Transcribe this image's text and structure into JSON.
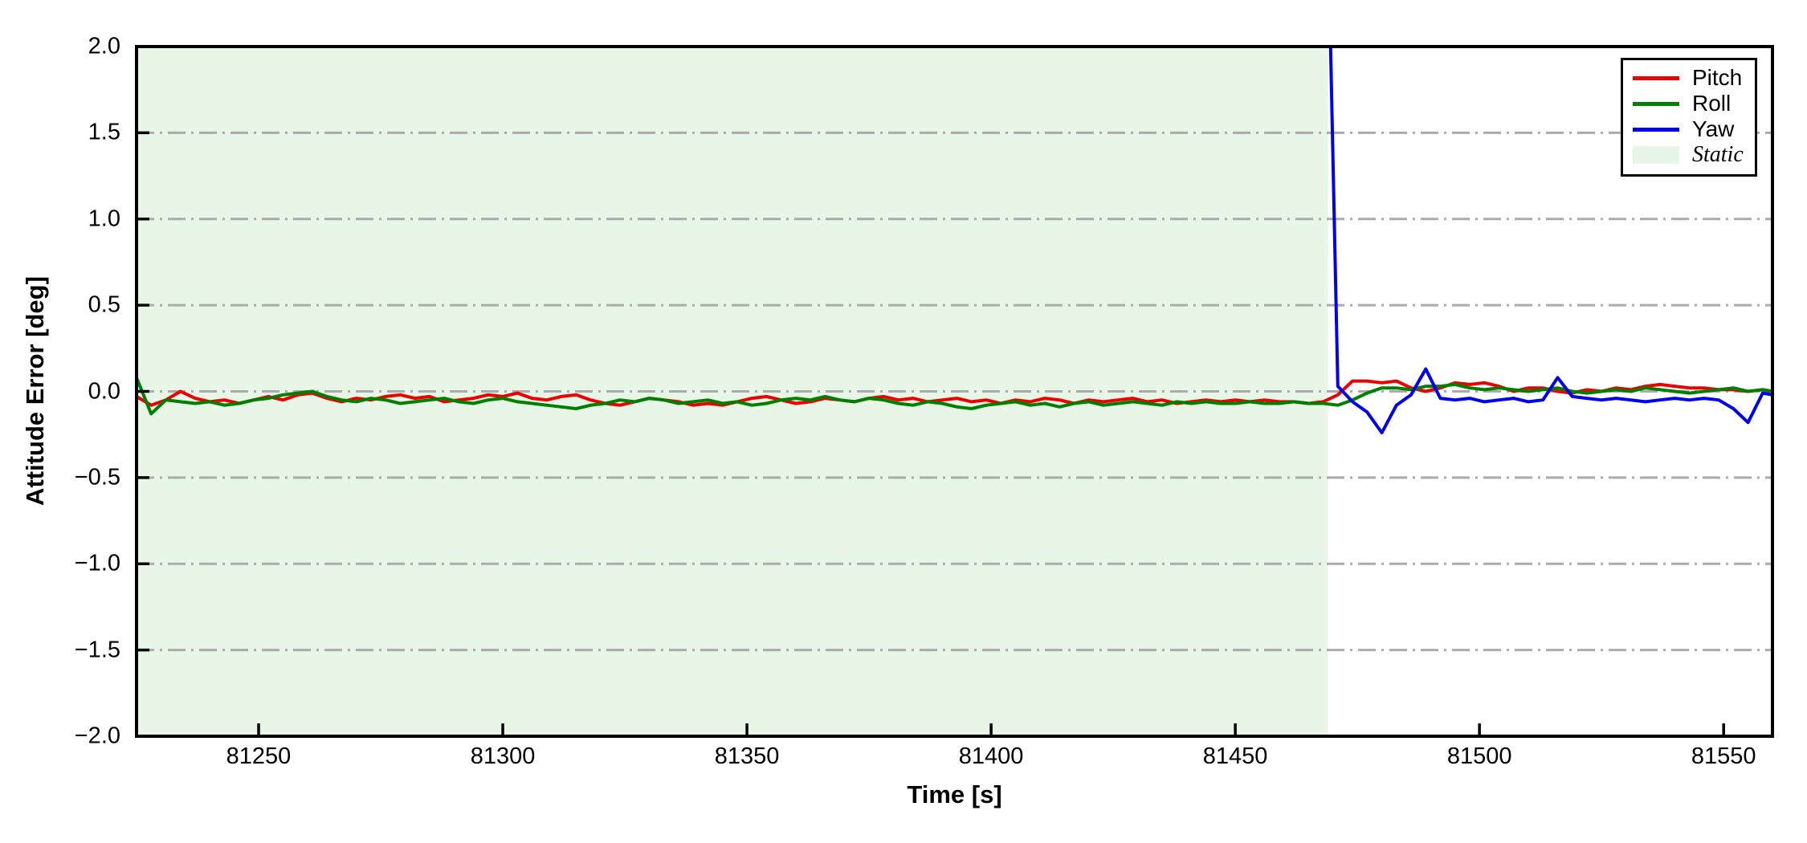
{
  "chart_data": {
    "type": "line",
    "title": "",
    "xlabel": "Time [s]",
    "ylabel": "Attitude Error [deg]",
    "xlim": [
      81225,
      81560
    ],
    "ylim": [
      -2.0,
      2.0
    ],
    "grid": "horizontal, dash-dot, gray",
    "legend_position": "upper right",
    "axis_color": "#000000",
    "grid_color": "#ababab",
    "background_color": "#ffffff",
    "x_ticks": [
      {
        "value": 81250,
        "label": "81250"
      },
      {
        "value": 81300,
        "label": "81300"
      },
      {
        "value": 81350,
        "label": "81350"
      },
      {
        "value": 81400,
        "label": "81400"
      },
      {
        "value": 81450,
        "label": "81450"
      },
      {
        "value": 81500,
        "label": "81500"
      },
      {
        "value": 81550,
        "label": "81550"
      }
    ],
    "y_ticks": [
      {
        "value": 2.0,
        "label": "2.0"
      },
      {
        "value": 1.5,
        "label": "1.5"
      },
      {
        "value": 1.0,
        "label": "1.0"
      },
      {
        "value": 0.5,
        "label": "0.5"
      },
      {
        "value": 0.0,
        "label": "0.0"
      },
      {
        "value": -0.5,
        "label": "−0.5"
      },
      {
        "value": -1.0,
        "label": "−1.0"
      },
      {
        "value": -1.5,
        "label": "−1.5"
      },
      {
        "value": -2.0,
        "label": "−2.0"
      }
    ],
    "static_region": {
      "label": "Static",
      "x_start": 81225,
      "x_end": 81469,
      "color": "#e7f6e7"
    },
    "legend": {
      "entries": [
        {
          "label": "Pitch",
          "type": "line",
          "color": "#ee0000",
          "italic": false
        },
        {
          "label": "Roll",
          "type": "line",
          "color": "#008000",
          "italic": false
        },
        {
          "label": "Yaw",
          "type": "line",
          "color": "#0000ee",
          "italic": false
        },
        {
          "label": "Static",
          "type": "patch",
          "color": "#e7f6e7",
          "italic": true
        }
      ]
    },
    "x": [
      81225,
      81228,
      81231,
      81234,
      81237,
      81240,
      81243,
      81246,
      81249,
      81252,
      81255,
      81258,
      81261,
      81264,
      81267,
      81270,
      81273,
      81276,
      81279,
      81282,
      81285,
      81288,
      81291,
      81294,
      81297,
      81300,
      81303,
      81306,
      81309,
      81312,
      81315,
      81318,
      81321,
      81324,
      81327,
      81330,
      81333,
      81336,
      81339,
      81342,
      81345,
      81348,
      81351,
      81354,
      81357,
      81360,
      81363,
      81366,
      81369,
      81372,
      81375,
      81378,
      81381,
      81384,
      81387,
      81390,
      81393,
      81396,
      81399,
      81402,
      81405,
      81408,
      81411,
      81414,
      81417,
      81420,
      81423,
      81426,
      81429,
      81432,
      81435,
      81438,
      81441,
      81444,
      81447,
      81450,
      81453,
      81456,
      81459,
      81462,
      81465,
      81468,
      81471,
      81474,
      81477,
      81480,
      81483,
      81486,
      81489,
      81492,
      81495,
      81498,
      81501,
      81504,
      81507,
      81510,
      81513,
      81516,
      81519,
      81522,
      81525,
      81528,
      81531,
      81534,
      81537,
      81540,
      81543,
      81546,
      81549,
      81552,
      81555,
      81558,
      81560
    ],
    "series": [
      {
        "name": "Pitch",
        "color": "#ee0000",
        "values": [
          -0.03,
          -0.08,
          -0.05,
          0.0,
          -0.04,
          -0.06,
          -0.05,
          -0.07,
          -0.05,
          -0.03,
          -0.05,
          -0.02,
          -0.01,
          -0.04,
          -0.06,
          -0.04,
          -0.05,
          -0.03,
          -0.02,
          -0.04,
          -0.03,
          -0.06,
          -0.05,
          -0.04,
          -0.02,
          -0.03,
          -0.01,
          -0.04,
          -0.05,
          -0.03,
          -0.02,
          -0.05,
          -0.07,
          -0.08,
          -0.06,
          -0.04,
          -0.05,
          -0.06,
          -0.08,
          -0.07,
          -0.08,
          -0.06,
          -0.04,
          -0.03,
          -0.05,
          -0.07,
          -0.06,
          -0.04,
          -0.05,
          -0.06,
          -0.04,
          -0.03,
          -0.05,
          -0.04,
          -0.06,
          -0.05,
          -0.04,
          -0.06,
          -0.05,
          -0.07,
          -0.05,
          -0.06,
          -0.04,
          -0.05,
          -0.07,
          -0.05,
          -0.06,
          -0.05,
          -0.04,
          -0.06,
          -0.05,
          -0.07,
          -0.06,
          -0.05,
          -0.06,
          -0.05,
          -0.06,
          -0.05,
          -0.06,
          -0.06,
          -0.07,
          -0.06,
          -0.02,
          0.06,
          0.06,
          0.05,
          0.06,
          0.02,
          0.0,
          0.02,
          0.05,
          0.04,
          0.05,
          0.03,
          0.0,
          0.02,
          0.02,
          0.0,
          -0.01,
          0.01,
          0.0,
          0.02,
          0.01,
          0.03,
          0.04,
          0.03,
          0.02,
          0.02,
          0.01,
          0.01,
          0.0,
          0.01,
          0.0
        ]
      },
      {
        "name": "Roll",
        "color": "#008000",
        "values": [
          0.08,
          -0.13,
          -0.05,
          -0.06,
          -0.07,
          -0.06,
          -0.08,
          -0.07,
          -0.05,
          -0.04,
          -0.02,
          -0.01,
          0.0,
          -0.03,
          -0.05,
          -0.06,
          -0.04,
          -0.05,
          -0.07,
          -0.06,
          -0.05,
          -0.04,
          -0.06,
          -0.07,
          -0.05,
          -0.04,
          -0.06,
          -0.07,
          -0.08,
          -0.09,
          -0.1,
          -0.08,
          -0.07,
          -0.05,
          -0.06,
          -0.04,
          -0.05,
          -0.07,
          -0.06,
          -0.05,
          -0.07,
          -0.06,
          -0.08,
          -0.07,
          -0.05,
          -0.04,
          -0.05,
          -0.03,
          -0.05,
          -0.06,
          -0.04,
          -0.05,
          -0.07,
          -0.08,
          -0.06,
          -0.07,
          -0.09,
          -0.1,
          -0.08,
          -0.07,
          -0.06,
          -0.08,
          -0.07,
          -0.09,
          -0.07,
          -0.06,
          -0.08,
          -0.07,
          -0.06,
          -0.07,
          -0.08,
          -0.06,
          -0.07,
          -0.06,
          -0.07,
          -0.07,
          -0.06,
          -0.07,
          -0.07,
          -0.06,
          -0.07,
          -0.07,
          -0.08,
          -0.05,
          -0.01,
          0.02,
          0.02,
          0.01,
          0.03,
          0.03,
          0.04,
          0.02,
          0.01,
          0.02,
          0.01,
          0.0,
          0.01,
          0.02,
          0.0,
          -0.01,
          0.0,
          0.01,
          0.0,
          0.02,
          0.01,
          0.0,
          -0.01,
          0.0,
          0.01,
          0.02,
          0.0,
          0.01,
          0.0
        ]
      },
      {
        "name": "Yaw",
        "color": "#0000ee",
        "values": [
          null,
          null,
          null,
          null,
          null,
          null,
          null,
          null,
          null,
          null,
          null,
          null,
          null,
          null,
          null,
          null,
          null,
          null,
          null,
          null,
          null,
          null,
          null,
          null,
          null,
          null,
          null,
          null,
          null,
          null,
          null,
          null,
          null,
          null,
          null,
          null,
          null,
          null,
          null,
          null,
          null,
          null,
          null,
          null,
          null,
          null,
          null,
          null,
          null,
          null,
          null,
          null,
          null,
          null,
          null,
          null,
          null,
          null,
          null,
          null,
          null,
          null,
          null,
          null,
          null,
          null,
          null,
          null,
          null,
          null,
          null,
          null,
          null,
          null,
          null,
          null,
          null,
          null,
          null,
          null,
          null,
          4.0,
          0.03,
          -0.06,
          -0.12,
          -0.24,
          -0.08,
          -0.02,
          0.13,
          -0.04,
          -0.05,
          -0.04,
          -0.06,
          -0.05,
          -0.04,
          -0.06,
          -0.05,
          0.08,
          -0.03,
          -0.04,
          -0.05,
          -0.04,
          -0.05,
          -0.06,
          -0.05,
          -0.04,
          -0.05,
          -0.04,
          -0.05,
          -0.1,
          -0.18,
          -0.01,
          -0.02
        ]
      }
    ]
  }
}
